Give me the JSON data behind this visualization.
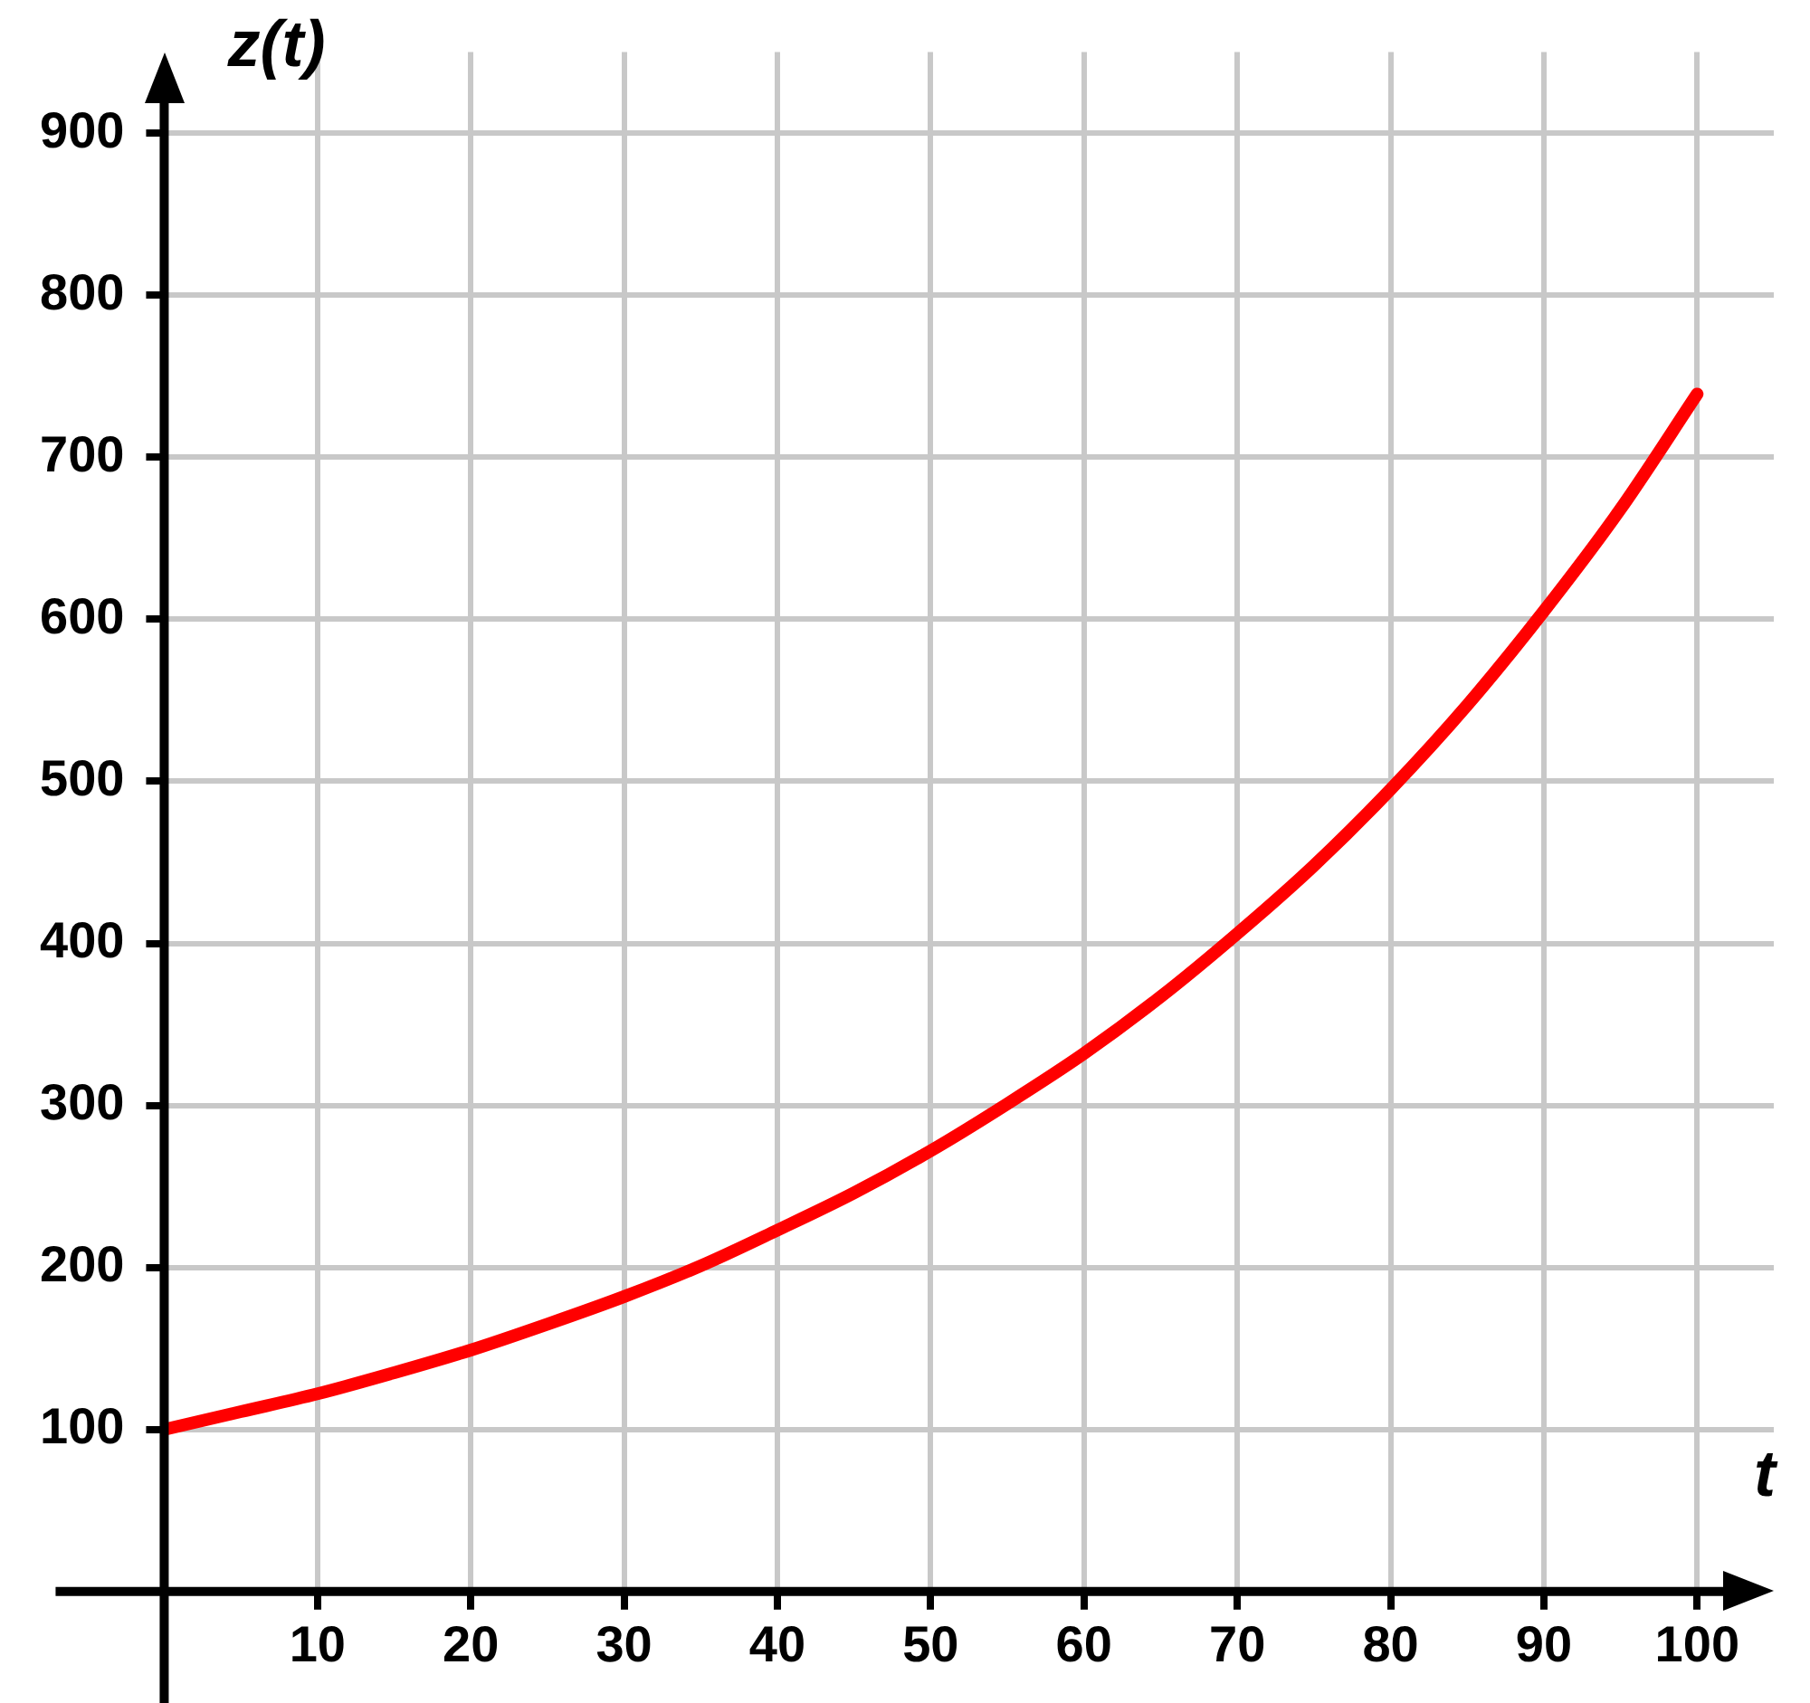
{
  "chart_data": {
    "type": "line",
    "xlabel": "t",
    "ylabel": "z(t)",
    "x": [
      0,
      5,
      10,
      15,
      20,
      25,
      30,
      35,
      40,
      45,
      50,
      55,
      60,
      65,
      70,
      75,
      80,
      85,
      90,
      95,
      100
    ],
    "series": [
      {
        "color": "#ff0000",
        "values": [
          100,
          111,
          122,
          135,
          149,
          165,
          182,
          201,
          223,
          246,
          272,
          301,
          332,
          367,
          406,
          448,
          495,
          547,
          605,
          668,
          739
        ]
      }
    ],
    "xlim": [
      0,
      105
    ],
    "ylim": [
      0,
      950
    ],
    "xticks": [
      10,
      20,
      30,
      40,
      50,
      60,
      70,
      80,
      90,
      100
    ],
    "yticks": [
      100,
      200,
      300,
      400,
      500,
      600,
      700,
      800,
      900
    ],
    "grid": true,
    "legend": false,
    "marker": "none",
    "line_style": "solid"
  }
}
